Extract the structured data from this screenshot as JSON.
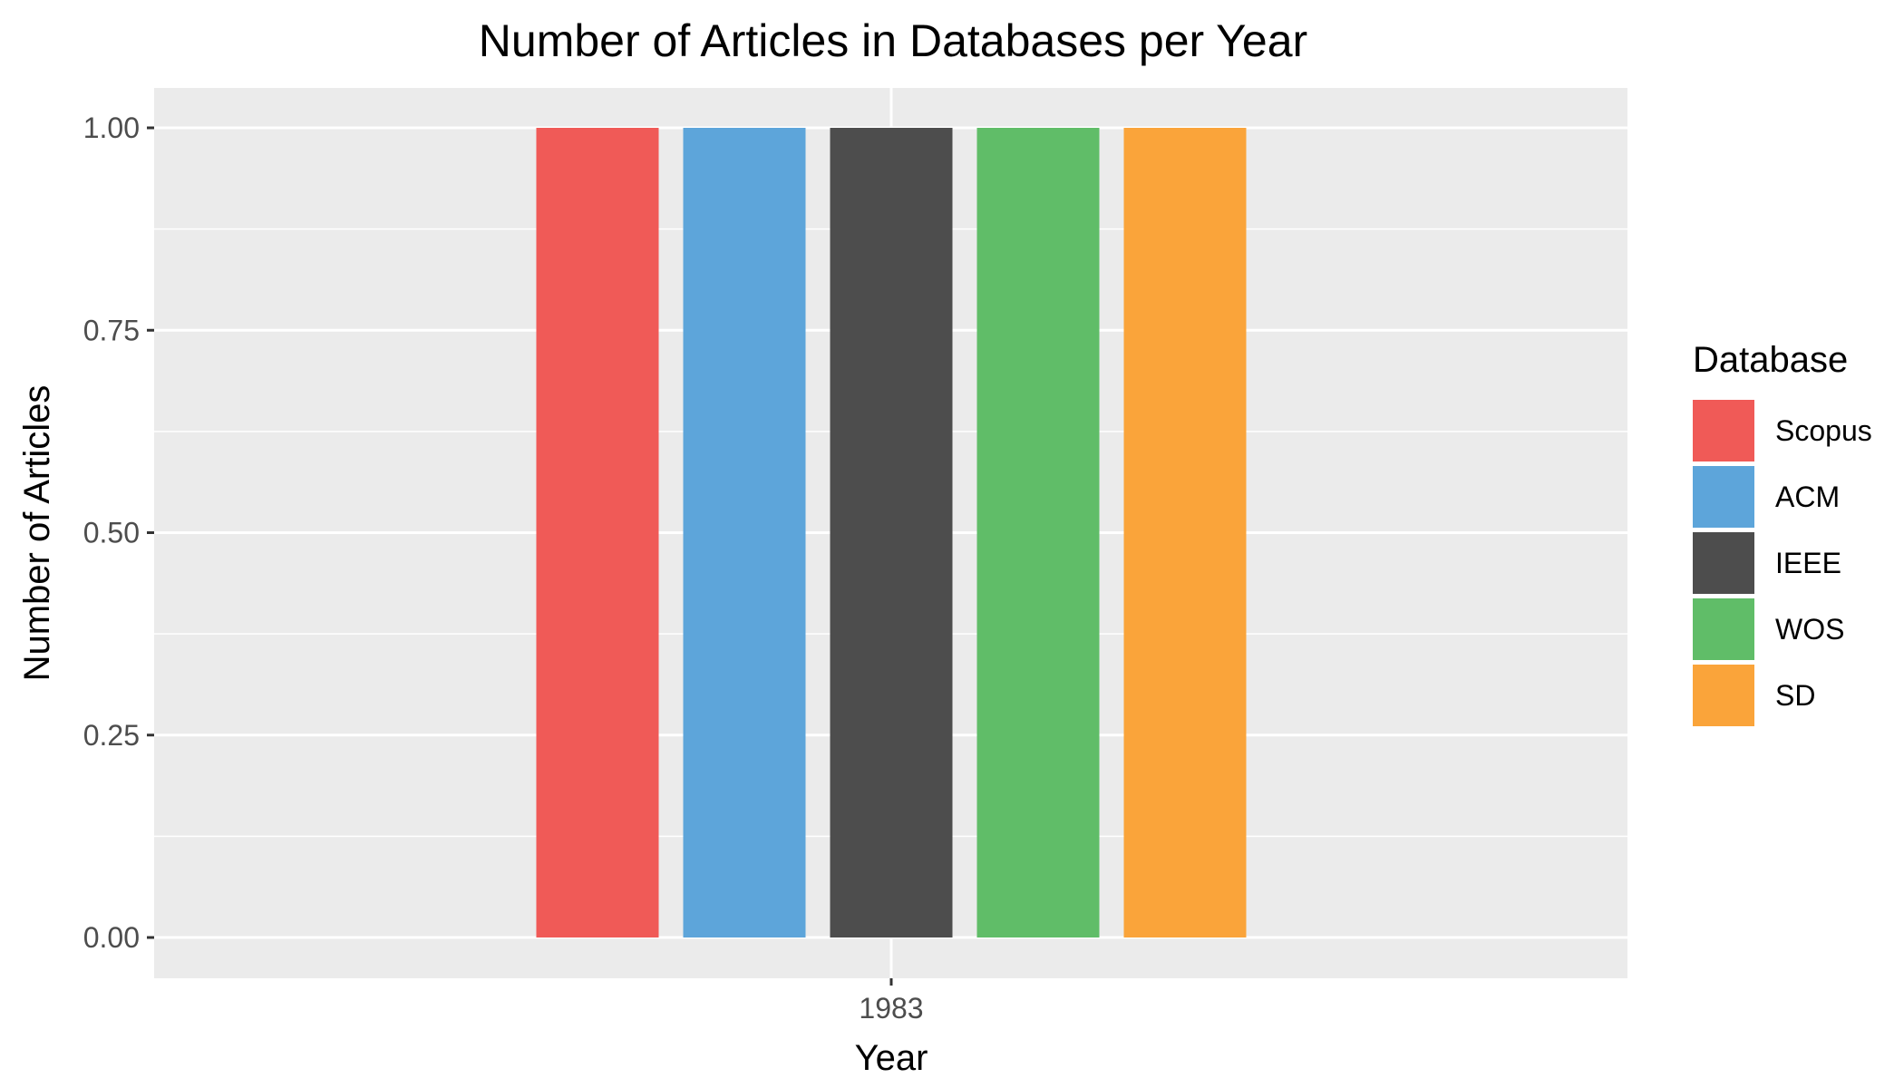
{
  "chart_data": {
    "type": "bar",
    "title": "Number of Articles in Databases per Year",
    "xlabel": "Year",
    "ylabel": "Number of Articles",
    "categories": [
      "1983"
    ],
    "series": [
      {
        "name": "Scopus",
        "values": [
          1
        ],
        "color": "#F05A57"
      },
      {
        "name": "ACM",
        "values": [
          1
        ],
        "color": "#5DA5DA"
      },
      {
        "name": "IEEE",
        "values": [
          1
        ],
        "color": "#4D4D4D"
      },
      {
        "name": "WOS",
        "values": [
          1
        ],
        "color": "#60BD68"
      },
      {
        "name": "SD",
        "values": [
          1
        ],
        "color": "#FAA43A"
      }
    ],
    "ylim": [
      0,
      1
    ],
    "yticks": [
      "0.00",
      "0.25",
      "0.50",
      "0.75",
      "1.00"
    ],
    "legend_title": "Database",
    "legend_position": "right",
    "grid": true
  }
}
